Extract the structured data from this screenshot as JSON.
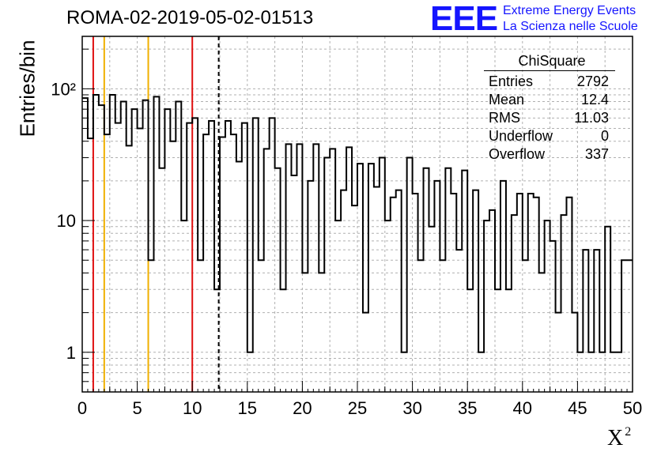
{
  "header": {
    "run_title": "ROMA-02-2019-05-02-01513",
    "brand_logo": "EEE",
    "brand_line1": "Extreme Energy Events",
    "brand_line2": "La Scienza nelle Scuole",
    "brand_color": "#1515ff"
  },
  "stats": {
    "title": "ChiSquare",
    "rows": [
      {
        "label": "Entries",
        "value": "2792"
      },
      {
        "label": "Mean",
        "value": "12.4"
      },
      {
        "label": "RMS",
        "value": "11.03"
      },
      {
        "label": "Underflow",
        "value": "0"
      },
      {
        "label": "Overflow",
        "value": "337"
      }
    ]
  },
  "chart_data": {
    "type": "bar",
    "histogram": true,
    "xlabel": "X²",
    "ylabel": "Entries/bin",
    "xlim": [
      0,
      50
    ],
    "ylim": [
      0.5,
      250
    ],
    "log_y": true,
    "grid": true,
    "bin_width": 0.5,
    "x_ticks": [
      "0",
      "5",
      "10",
      "15",
      "20",
      "25",
      "30",
      "35",
      "40",
      "45",
      "50"
    ],
    "y_tick_labels": [
      "1",
      "10",
      "10²"
    ],
    "y_tick_values": [
      1,
      10,
      100
    ],
    "values": [
      85,
      42,
      90,
      75,
      45,
      90,
      55,
      80,
      37,
      70,
      50,
      82,
      5,
      87,
      25,
      70,
      40,
      80,
      10,
      55,
      60,
      5,
      45,
      57,
      3,
      43,
      57,
      45,
      28,
      55,
      1,
      60,
      5,
      35,
      60,
      25,
      3,
      38,
      22,
      38,
      4,
      20,
      38,
      4,
      30,
      35,
      10,
      17,
      36,
      13,
      27,
      2,
      27,
      18,
      30,
      10,
      15,
      17,
      1,
      30,
      16,
      5,
      25,
      9,
      20,
      5,
      25,
      16,
      6,
      24,
      3,
      17,
      1,
      10,
      12,
      3,
      20,
      3,
      11,
      16,
      5,
      16,
      15,
      4,
      10,
      7,
      2,
      11,
      15,
      2,
      1,
      6,
      1,
      6,
      1,
      9,
      1,
      1,
      5,
      5
    ],
    "reference_lines": [
      {
        "x": 1,
        "color": "#e01010",
        "style": "solid"
      },
      {
        "x": 2,
        "color": "#f0b000",
        "style": "solid"
      },
      {
        "x": 6,
        "color": "#f0b000",
        "style": "solid"
      },
      {
        "x": 10,
        "color": "#e01010",
        "style": "solid"
      },
      {
        "x": 12.4,
        "color": "#000000",
        "style": "dashed"
      }
    ]
  }
}
